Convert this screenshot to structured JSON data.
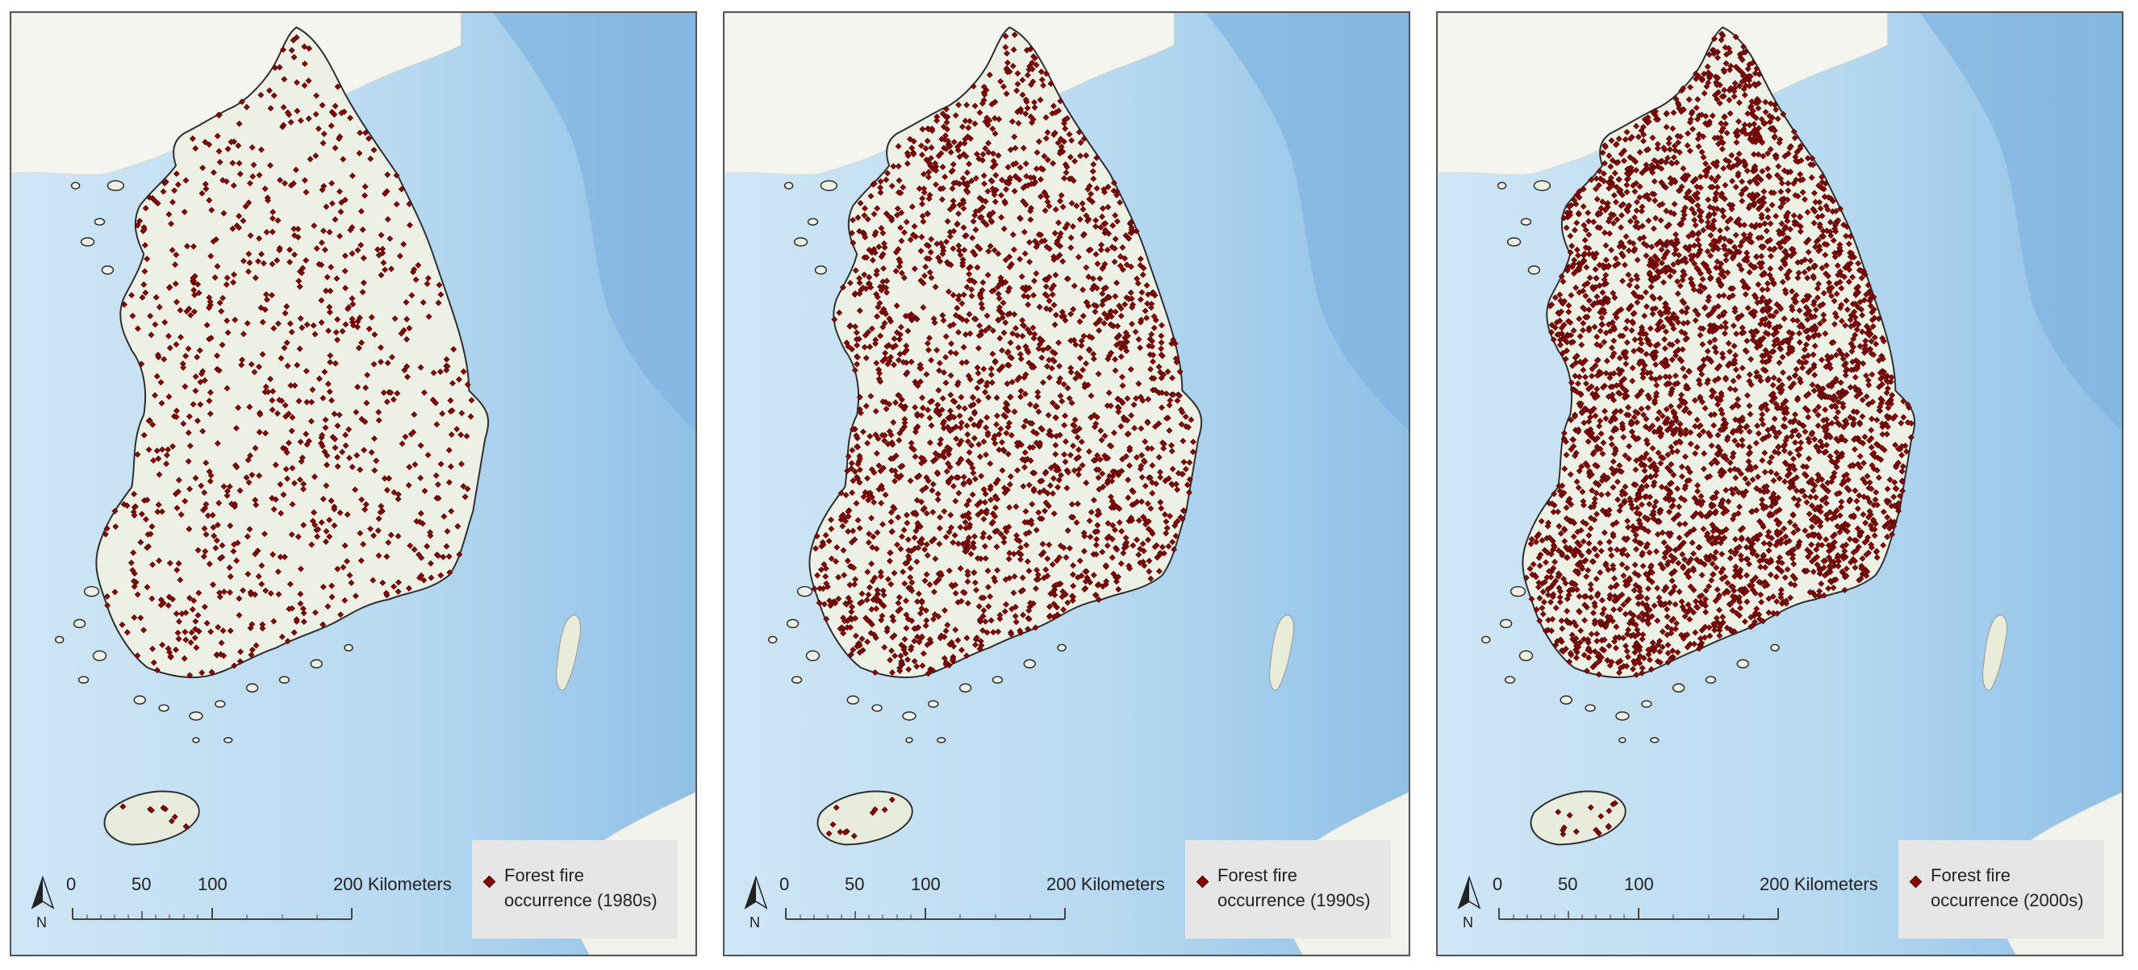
{
  "colors": {
    "sea": "#bcdcf1",
    "deep_sea": "#7fb3e0",
    "land": "#eef1e6",
    "land_border": "#333333",
    "fire_point": "#8b0000",
    "legend_bg": "#e6e6e6"
  },
  "icons": [
    "north-arrow-icon",
    "diamond-point-icon"
  ],
  "panels": [
    {
      "legend_text_line1": "Forest fire",
      "legend_text_line2": "occurrence (1980s)",
      "north_label": "N",
      "scale_ticks": [
        "0",
        "50",
        "100",
        "200 Kilometers"
      ]
    },
    {
      "legend_text_line1": "Forest fire",
      "legend_text_line2": "occurrence (1990s)",
      "north_label": "N",
      "scale_ticks": [
        "0",
        "50",
        "100",
        "200 Kilometers"
      ]
    },
    {
      "legend_text_line1": "Forest fire",
      "legend_text_line2": "occurrence (2000s)",
      "north_label": "N",
      "scale_ticks": [
        "0",
        "50",
        "100",
        "200 Kilometers"
      ]
    }
  ]
}
